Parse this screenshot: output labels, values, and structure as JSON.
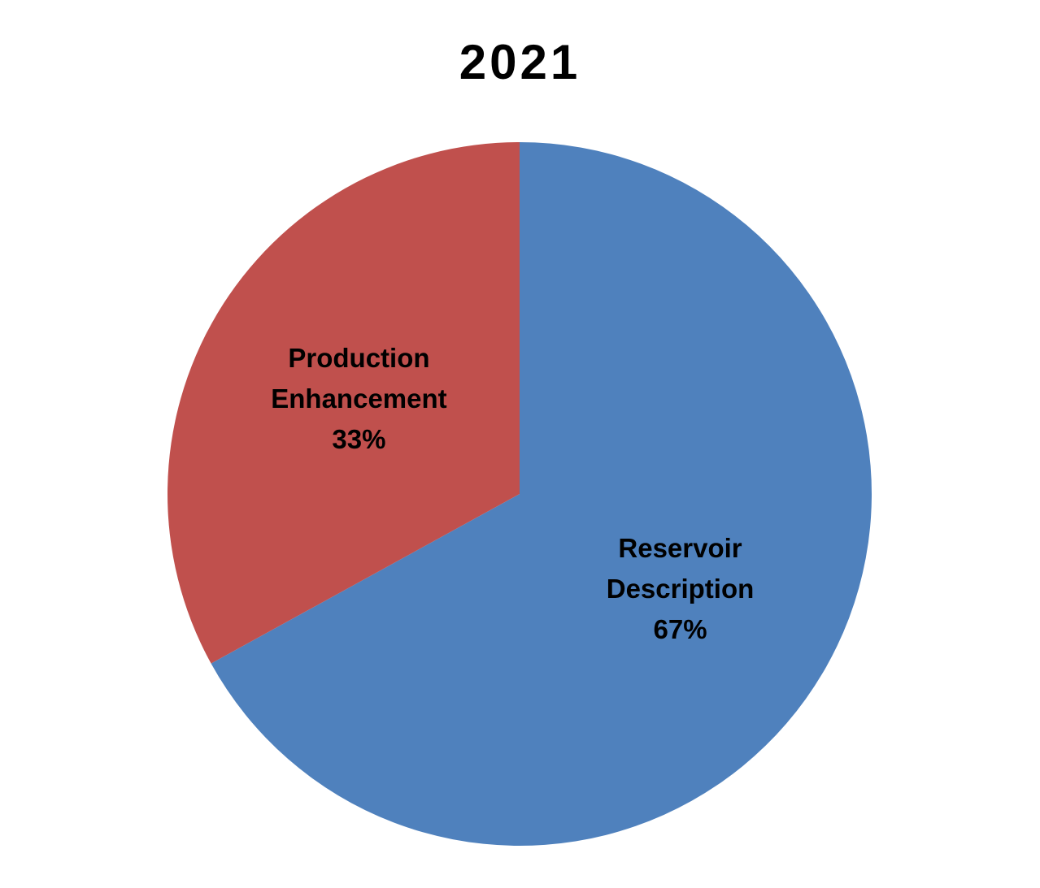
{
  "chart_data": {
    "type": "pie",
    "title": "2021",
    "categories": [
      "Reservoir Description",
      "Production Enhancement"
    ],
    "values": [
      67,
      33
    ],
    "value_labels": [
      "67%",
      "33%"
    ],
    "colors": [
      "#4f81bd",
      "#c0504d"
    ]
  }
}
